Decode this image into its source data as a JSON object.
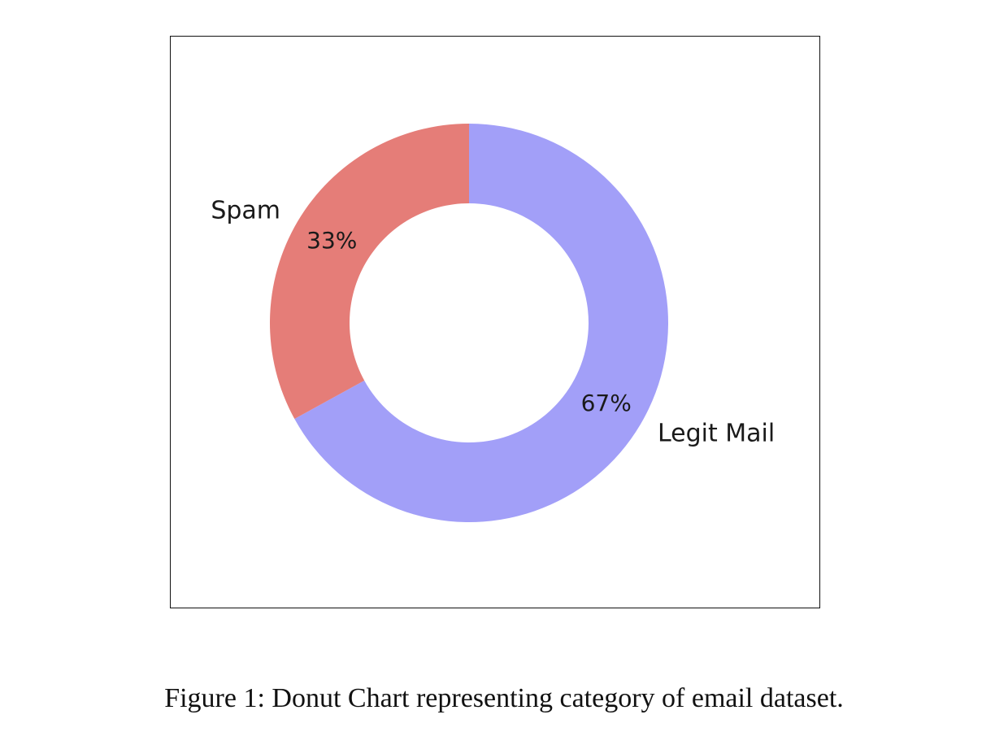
{
  "chart_data": {
    "type": "pie",
    "variant": "donut",
    "categories": [
      "Legit Mail",
      "Spam"
    ],
    "values": [
      67,
      33
    ],
    "data_labels": [
      "67%",
      "33%"
    ],
    "colors": [
      "#a29ff8",
      "#e57d78"
    ],
    "title": "",
    "legend": "none"
  },
  "caption": "Figure 1: Donut Chart representing category of email dataset."
}
